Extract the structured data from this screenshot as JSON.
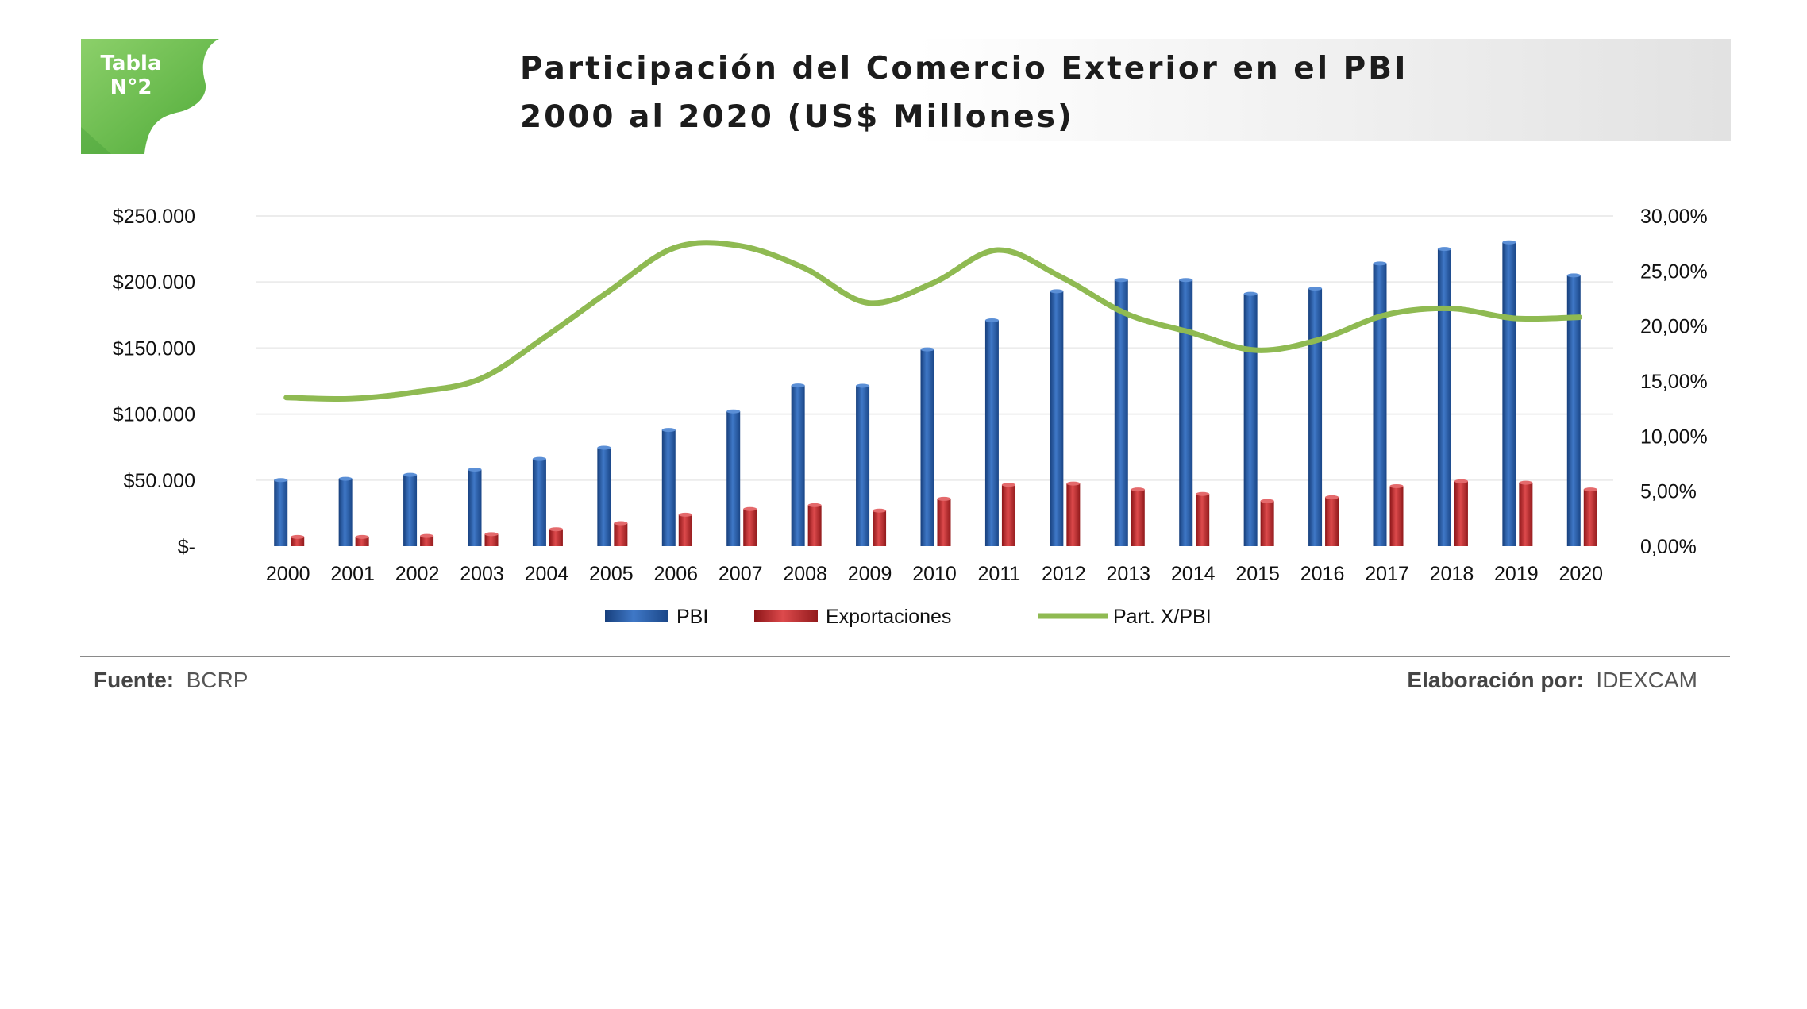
{
  "badge": {
    "line1": "Tabla",
    "line2": "N°2",
    "color": "#6cbf45"
  },
  "header": {
    "title_line1": "Participación del Comercio Exterior en el PBI",
    "title_line2": "2000 al 2020 (US$ Millones)"
  },
  "footer": {
    "source_label": "Fuente:",
    "source_value": "BCRP",
    "author_label": "Elaboración por:",
    "author_value": "IDEXCAM"
  },
  "chart_data": {
    "type": "bar+line",
    "title": "Participación del Comercio Exterior en el PBI 2000 al 2020 (US$ Millones)",
    "categories": [
      "2000",
      "2001",
      "2002",
      "2003",
      "2004",
      "2005",
      "2006",
      "2007",
      "2008",
      "2009",
      "2010",
      "2011",
      "2012",
      "2013",
      "2014",
      "2015",
      "2016",
      "2017",
      "2018",
      "2019",
      "2020"
    ],
    "y_left": {
      "min": 0,
      "max": 250000,
      "ticks": [
        "$-",
        "$50.000",
        "$100.000",
        "$150.000",
        "$200.000",
        "$250.000"
      ]
    },
    "y_right": {
      "min": 0,
      "max": 30,
      "ticks": [
        "0,00%",
        "5,00%",
        "10,00%",
        "15,00%",
        "20,00%",
        "25,00%",
        "30,00%"
      ]
    },
    "series": [
      {
        "name": "PBI",
        "type": "bar",
        "axis": "left",
        "color": "#2e63ad",
        "values": [
          50000,
          51000,
          54000,
          58000,
          66000,
          74500,
          88000,
          102000,
          121600,
          121400,
          149000,
          171000,
          193000,
          201500,
          201500,
          191000,
          195000,
          214000,
          225000,
          230000,
          205000
        ]
      },
      {
        "name": "Exportaciones",
        "type": "bar",
        "axis": "left",
        "color": "#c0292b",
        "values": [
          7000,
          7000,
          7700,
          9100,
          12800,
          17400,
          23800,
          28100,
          31000,
          26900,
          35800,
          46400,
          47400,
          42900,
          39500,
          34200,
          37000,
          45400,
          49100,
          48000,
          42900
        ]
      },
      {
        "name": "Part. X/PBI",
        "type": "line",
        "axis": "right",
        "color": "#8fba52",
        "values": [
          13.5,
          13.4,
          14.0,
          15.2,
          19.0,
          23.2,
          27.1,
          27.3,
          25.3,
          22.1,
          23.9,
          26.9,
          24.4,
          21.1,
          19.4,
          17.8,
          18.8,
          21.0,
          21.6,
          20.7,
          20.8
        ]
      }
    ]
  }
}
